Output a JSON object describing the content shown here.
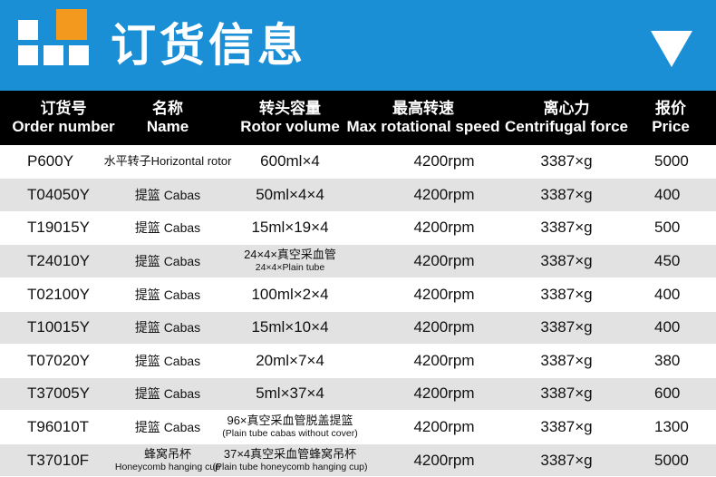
{
  "header": {
    "title": "订货信息"
  },
  "table": {
    "columns": [
      {
        "zh": "订货号",
        "en": "Order number"
      },
      {
        "zh": "名称",
        "en": "Name"
      },
      {
        "zh": "转头容量",
        "en": "Rotor volume"
      },
      {
        "zh": "最高转速",
        "en": "Max rotational speed"
      },
      {
        "zh": "离心力",
        "en": "Centrifugal force"
      },
      {
        "zh": "报价",
        "en": "Price"
      }
    ],
    "rows": [
      [
        "P600Y",
        "水平转子Horizontal rotor",
        "600ml×4",
        "4200rpm",
        "3387×g",
        "5000"
      ],
      [
        "T04050Y",
        "提篮 Cabas",
        "50ml×4×4",
        "4200rpm",
        "3387×g",
        "400"
      ],
      [
        "T19015Y",
        "提篮 Cabas",
        "15ml×19×4",
        "4200rpm",
        "3387×g",
        "500"
      ],
      [
        "T24010Y",
        "提篮 Cabas",
        [
          "24×4×真空采血管",
          "24×4×Plain tube"
        ],
        "4200rpm",
        "3387×g",
        "450"
      ],
      [
        "T02100Y",
        "提篮 Cabas",
        "100ml×2×4",
        "4200rpm",
        "3387×g",
        "400"
      ],
      [
        "T10015Y",
        "提篮 Cabas",
        "15ml×10×4",
        "4200rpm",
        "3387×g",
        "400"
      ],
      [
        "T07020Y",
        "提篮 Cabas",
        "20ml×7×4",
        "4200rpm",
        "3387×g",
        "380"
      ],
      [
        "T37005Y",
        "提篮 Cabas",
        "5ml×37×4",
        "4200rpm",
        "3387×g",
        "600"
      ],
      [
        "T96010T",
        "提篮 Cabas",
        [
          "96×真空采血管脱盖提篮",
          "(Plain tube cabas without cover)"
        ],
        "4200rpm",
        "3387×g",
        "1300"
      ],
      [
        "T37010F",
        [
          "蜂窝吊杯",
          "Honeycomb hanging cup"
        ],
        [
          "37×4真空采血管蜂窝吊杯",
          "(Plain tube honeycomb hanging cup)"
        ],
        "4200rpm",
        "3387×g",
        "5000"
      ]
    ]
  }
}
